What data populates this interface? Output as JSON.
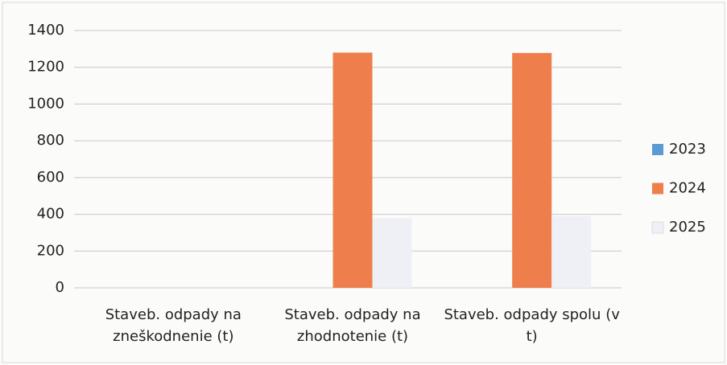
{
  "chart_data": {
    "type": "bar",
    "categories": [
      "Staveb. odpady na zneškodnenie (t)",
      "Staveb. odpady na zhodnotenie (t)",
      "Staveb. odpady spolu (v t)"
    ],
    "series": [
      {
        "name": "2023",
        "color": "#5b9bd5",
        "values": [
          0,
          0,
          0
        ]
      },
      {
        "name": "2024",
        "color": "#ee7f4c",
        "values": [
          0,
          1280,
          1278
        ]
      },
      {
        "name": "2025",
        "color": "#efeff6",
        "values": [
          0,
          378,
          390
        ]
      }
    ],
    "ylim": [
      0,
      1400
    ],
    "yticks": [
      0,
      200,
      400,
      600,
      800,
      1000,
      1200,
      1400
    ],
    "grid": true,
    "legend": "right"
  }
}
